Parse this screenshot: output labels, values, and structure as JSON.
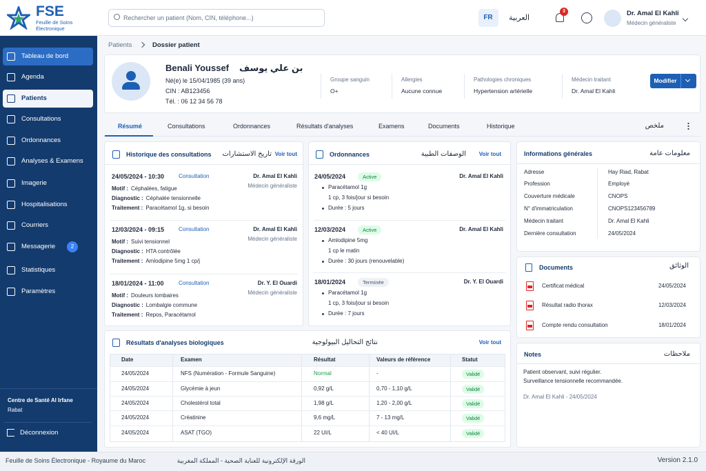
{
  "header": {
    "logo": "FSE",
    "logo_sub": "Feuille de Soins Électronique",
    "search_placeholder": "Rechercher un patient (Nom, CIN, téléphone...)",
    "lang": "FR",
    "lang_alt": "العربية",
    "notifications": 3,
    "user_name": "Dr. Amal El Kahli",
    "user_role": "Médecin généraliste"
  },
  "sidebar": {
    "items": [
      {
        "label": "Tableau de bord"
      },
      {
        "label": "Agenda"
      },
      {
        "label": "Patients"
      },
      {
        "label": "Consultations"
      },
      {
        "label": "Ordonnances"
      },
      {
        "label": "Analyses & Examens"
      },
      {
        "label": "Imagerie"
      },
      {
        "label": "Hospitalisations"
      },
      {
        "label": "Courriers"
      },
      {
        "label": "Messagerie",
        "badge": 2
      },
      {
        "label": "Statistiques"
      },
      {
        "label": "Paramètres"
      }
    ],
    "center": "Centre de Santé Al Irfane",
    "city": "Rabat",
    "logout": "Déconnexion"
  },
  "breadcrumb": [
    "Patients",
    "Dossier patient"
  ],
  "patient": {
    "name": "Benali Youssef",
    "name_ar": "بن علي يوسف",
    "birth": "Né(e) le 15/04/1985 (39 ans)",
    "cin": "CIN : AB123456",
    "phone": "Tél. : 06 12 34 56 78",
    "fields": [
      {
        "label": "Groupe sanguin",
        "value": "O+"
      },
      {
        "label": "Allergies",
        "value": "Aucune connue"
      },
      {
        "label": "Pathologies chroniques",
        "value": "Hypertension artérielle"
      },
      {
        "label": "Médecin traitant",
        "value": "Dr. Amal El Kahli"
      }
    ],
    "edit": "Modifier"
  },
  "tabs": [
    "Résumé",
    "Consultations",
    "Ordonnances",
    "Résultats d'analyses",
    "Examens",
    "Documents",
    "Historique"
  ],
  "tabs_ar": "ملخص",
  "consultations": {
    "title": "Historique des consultations",
    "title_ar": "تاريخ الاستشارات",
    "see_all": "Voir tout",
    "items": [
      {
        "date": "24/05/2024 - 10:30",
        "type": "Consultation",
        "doctor": "Dr. Amal El Kahli",
        "specialty": "Médecin généraliste",
        "rows": [
          {
            "label": "Motif :",
            "value": "Céphalées, fatigue"
          },
          {
            "label": "Diagnostic :",
            "value": "Céphalée tensionnelle"
          },
          {
            "label": "Traitement :",
            "value": "Paracétamol 1g, si besoin"
          }
        ]
      },
      {
        "date": "12/03/2024 - 09:15",
        "type": "Consultation",
        "doctor": "Dr. Amal El Kahli",
        "specialty": "Médecin généraliste",
        "rows": [
          {
            "label": "Motif :",
            "value": "Suivi tensionnel"
          },
          {
            "label": "Diagnostic :",
            "value": "HTA contrôlée"
          },
          {
            "label": "Traitement :",
            "value": "Amlodipine 5mg 1 cp/j"
          }
        ]
      },
      {
        "date": "18/01/2024 - 11:00",
        "type": "Consultation",
        "doctor": "Dr. Y. El Ouardi",
        "specialty": "Médecin généraliste",
        "rows": [
          {
            "label": "Motif :",
            "value": "Douleurs lombaires"
          },
          {
            "label": "Diagnostic :",
            "value": "Lombalgie commune"
          },
          {
            "label": "Traitement :",
            "value": "Repos, Paracétamol"
          }
        ]
      }
    ]
  },
  "ordonnances": {
    "title": "Ordonnances",
    "title_ar": "الوصفات الطبية",
    "see_all": "Voir tout",
    "items": [
      {
        "date": "24/05/2024",
        "status": "Active",
        "doctor": "Dr. Amal El Kahli",
        "lines": [
          "Paracétamol 1g",
          "1 cp, 3 fois/jour si besoin",
          "Durée : 5 jours"
        ]
      },
      {
        "date": "12/03/2024",
        "status": "Active",
        "doctor": "Dr. Amal El Kahli",
        "lines": [
          "Amlodipine 5mg",
          "1 cp le matin",
          "Durée : 30 jours (renouvelable)"
        ]
      },
      {
        "date": "18/01/2024",
        "status": "Terminée",
        "doctor": "Dr. Y. El Ouardi",
        "lines": [
          "Paracétamol 1g",
          "1 cp, 3 fois/jour si besoin",
          "Durée : 7 jours"
        ]
      }
    ]
  },
  "resultats": {
    "title": "Résultats d'analyses biologiques",
    "title_ar": "نتائج التحاليل البيولوجية",
    "see_all": "Voir tout",
    "columns": [
      "Date",
      "Examen",
      "Résultat",
      "Valeurs de référence",
      "Statut"
    ],
    "rows": [
      [
        "24/05/2024",
        "NFS (Numération - Formule Sanguine)",
        "Normal",
        "-",
        "Validé"
      ],
      [
        "24/05/2024",
        "Glycémie à jeun",
        "0,92 g/L",
        "0,70 - 1,10 g/L",
        "Validé"
      ],
      [
        "24/05/2024",
        "Cholestérol total",
        "1,98 g/L",
        "1,20 - 2,00 g/L",
        "Validé"
      ],
      [
        "24/05/2024",
        "Créatinine",
        "9,6 mg/L",
        "7 - 13 mg/L",
        "Validé"
      ],
      [
        "24/05/2024",
        "ASAT (TGO)",
        "22 UI/L",
        "< 40 UI/L",
        "Validé"
      ]
    ]
  },
  "info": {
    "title": "Informations générales",
    "title_ar": "معلومات عامة",
    "rows": [
      [
        "Adresse",
        "Hay Riad, Rabat"
      ],
      [
        "Profession",
        "Employé"
      ],
      [
        "Couverture médicale",
        "CNOPS"
      ],
      [
        "N° d'immatriculation",
        "CNOPS123456789"
      ],
      [
        "Médecin traitant",
        "Dr. Amal El Kahli"
      ],
      [
        "Dernière consultation",
        "24/05/2024"
      ]
    ]
  },
  "documents": {
    "title": "Documents",
    "title_ar": "الوثائق",
    "items": [
      {
        "name": "Certificat médical",
        "date": "24/05/2024"
      },
      {
        "name": "Résultat radio thorax",
        "date": "12/03/2024"
      },
      {
        "name": "Compte rendu consultation",
        "date": "18/01/2024"
      }
    ]
  },
  "notes": {
    "title": "Notes",
    "title_ar": "ملاحظات",
    "text": [
      "Patient observant, suivi régulier.",
      "Surveillance tensionnelle recommandée."
    ],
    "author": "Dr. Amal El Kahli - 24/05/2024"
  },
  "footer": {
    "left": "Feuille de Soins Électronique - Royaume du Maroc",
    "center": "الورقة الإلكترونية للعناية الصحية - المملكة المغربية",
    "version": "Version 2.1.0"
  }
}
